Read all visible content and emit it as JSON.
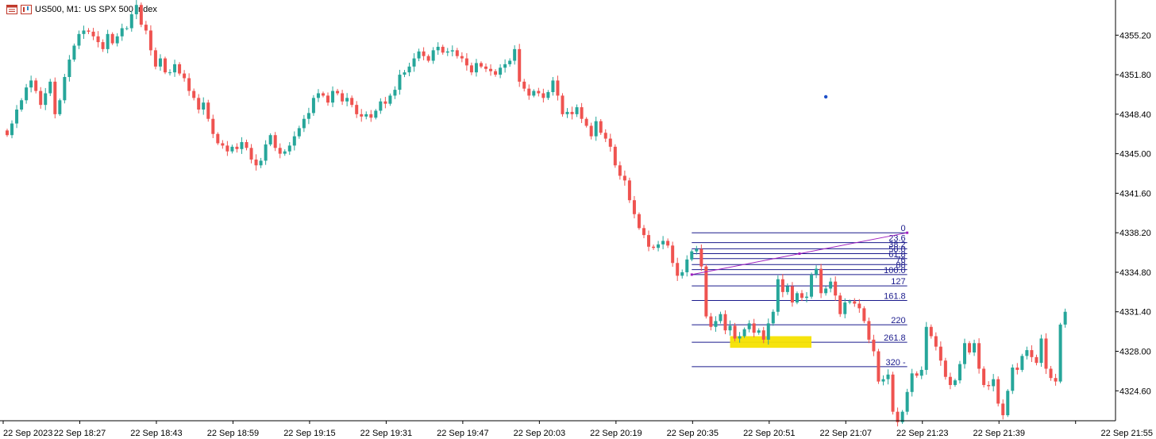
{
  "header": {
    "symbol": "US500, M1:",
    "description": "US SPX 500 Index"
  },
  "colors": {
    "bull": "#26a69a",
    "bear": "#ef5350",
    "fib_line": "#1a1a8c",
    "trend_line": "#a020c0",
    "highlight": "#f5e100",
    "axis": "#000000",
    "marker": "#1e50c8"
  },
  "icons": [
    "chart-window-icon",
    "chart-properties-icon"
  ],
  "chart_data": {
    "type": "candlestick",
    "symbol": "US500",
    "timeframe": "M1",
    "ylim": [
      4321.0,
      4359.0
    ],
    "y_ticks": [
      {
        "value": 4355.2,
        "label": "4355.20"
      },
      {
        "value": 4351.8,
        "label": "4351.80"
      },
      {
        "value": 4348.4,
        "label": "4348.40"
      },
      {
        "value": 4345.0,
        "label": "4345.00"
      },
      {
        "value": 4341.6,
        "label": "4341.60"
      },
      {
        "value": 4338.2,
        "label": "4338.20"
      },
      {
        "value": 4334.8,
        "label": "4334.80"
      },
      {
        "value": 4331.4,
        "label": "4331.40"
      },
      {
        "value": 4328.0,
        "label": "4328.00"
      },
      {
        "value": 4324.6,
        "label": "4324.60"
      }
    ],
    "x_ticks": [
      {
        "bar": 0,
        "label": "22 Sep 2023"
      },
      {
        "bar": 16,
        "label": "22 Sep 18:27"
      },
      {
        "bar": 32,
        "label": "22 Sep 18:43"
      },
      {
        "bar": 48,
        "label": "22 Sep 18:59"
      },
      {
        "bar": 64,
        "label": "22 Sep 19:15"
      },
      {
        "bar": 80,
        "label": "22 Sep 19:31"
      },
      {
        "bar": 96,
        "label": "22 Sep 19:47"
      },
      {
        "bar": 112,
        "label": "22 Sep 20:03"
      },
      {
        "bar": 128,
        "label": "22 Sep 20:19"
      },
      {
        "bar": 144,
        "label": "22 Sep 20:35"
      },
      {
        "bar": 160,
        "label": "22 Sep 20:51"
      },
      {
        "bar": 176,
        "label": "22 Sep 21:07"
      },
      {
        "bar": 192,
        "label": "22 Sep 21:23"
      },
      {
        "bar": 208,
        "label": "22 Sep 21:39"
      },
      {
        "bar": 224,
        "label": "22 Sep 21:55"
      }
    ],
    "closes": [
      4346.6,
      4347.6,
      4348.8,
      4349.6,
      4350.7,
      4351.3,
      4350.4,
      4349.2,
      4350.2,
      4351.2,
      4348.4,
      4349.6,
      4351.6,
      4353.1,
      4354.3,
      4355.3,
      4355.6,
      4355.5,
      4355.1,
      4354.6,
      4354.0,
      4355.3,
      4354.5,
      4355.1,
      4355.8,
      4355.8,
      4357.0,
      4357.8,
      4356.1,
      4355.6,
      4353.9,
      4352.5,
      4353.2,
      4352.0,
      4352.0,
      4352.7,
      4351.9,
      4351.5,
      4350.4,
      4349.8,
      4348.8,
      4349.4,
      4348.0,
      4346.7,
      4345.9,
      4345.7,
      4345.2,
      4345.6,
      4345.4,
      4346.0,
      4345.5,
      4344.5,
      4344.0,
      4344.4,
      4345.8,
      4346.6,
      4345.5,
      4345.0,
      4345.2,
      4345.7,
      4346.5,
      4347.2,
      4348.0,
      4348.5,
      4349.8,
      4350.2,
      4350.0,
      4349.4,
      4350.4,
      4350.2,
      4349.5,
      4349.8,
      4349.2,
      4348.4,
      4348.2,
      4348.4,
      4348.1,
      4348.7,
      4349.5,
      4349.3,
      4350.0,
      4350.5,
      4351.8,
      4352.0,
      4352.5,
      4353.2,
      4353.8,
      4353.4,
      4353.0,
      4353.9,
      4354.2,
      4353.7,
      4353.8,
      4353.9,
      4353.4,
      4353.2,
      4352.6,
      4352.0,
      4352.8,
      4352.5,
      4352.3,
      4352.1,
      4351.8,
      4352.4,
      4352.7,
      4353.0,
      4354.0,
      4351.2,
      4350.6,
      4350.0,
      4350.4,
      4350.2,
      4349.8,
      4350.3,
      4351.3,
      4350.0,
      4348.4,
      4348.6,
      4348.4,
      4349.0,
      4348.0,
      4347.4,
      4346.5,
      4347.8,
      4346.8,
      4346.3,
      4345.6,
      4344.0,
      4343.1,
      4342.7,
      4341.0,
      4339.8,
      4338.6,
      4338.0,
      4337.0,
      4336.9,
      4337.2,
      4337.5,
      4337.1,
      4335.6,
      4334.5,
      4334.8,
      4335.9,
      4336.6,
      4336.8,
      4335.3,
      4331.0,
      4330.1,
      4330.6,
      4331.2,
      4329.8,
      4330.2,
      4329.1,
      4329.3,
      4329.9,
      4330.4,
      4329.6,
      4329.8,
      4329.0,
      4330.4,
      4331.4,
      4334.2,
      4333.1,
      4333.6,
      4332.2,
      4333.0,
      4332.6,
      4332.7,
      4334.6,
      4335.1,
      4333.0,
      4333.4,
      4334.0,
      4332.8,
      4331.2,
      4332.2,
      4332.3,
      4332.1,
      4331.7,
      4330.6,
      4329.0,
      4328.0,
      4325.4,
      4325.6,
      4326.0,
      4322.8,
      4321.9,
      4322.8,
      4324.5,
      4326.1,
      4325.9,
      4326.4,
      4330.1,
      4329.3,
      4328.4,
      4327.2,
      4325.8,
      4325.1,
      4325.5,
      4326.9,
      4328.7,
      4327.9,
      4328.7,
      4326.5,
      4325.1,
      4325.0,
      4325.6,
      4323.5,
      4322.5,
      4324.6,
      4326.6,
      4326.4,
      4327.6,
      4328.1,
      4327.5,
      4327.0,
      4329.1,
      4326.5,
      4325.7,
      4325.4,
      4330.3,
      4331.4
    ],
    "fibonacci": {
      "start_bar": 143,
      "end_bar": 188,
      "price_0": 4338.2,
      "price_100": 4334.6,
      "levels": [
        {
          "ratio": 0.0,
          "label": "0"
        },
        {
          "ratio": 0.236,
          "label": "23.6"
        },
        {
          "ratio": 0.382,
          "label": "38.2"
        },
        {
          "ratio": 0.5,
          "label": "50.0"
        },
        {
          "ratio": 0.618,
          "label": "61.8"
        },
        {
          "ratio": 0.76,
          "label": "76"
        },
        {
          "ratio": 0.88,
          "label": "88"
        },
        {
          "ratio": 1.0,
          "label": "100.0"
        },
        {
          "ratio": 1.27,
          "label": "127"
        },
        {
          "ratio": 1.618,
          "label": "161.8"
        },
        {
          "ratio": 2.2,
          "label": "220"
        },
        {
          "ratio": 2.618,
          "label": "261.8"
        },
        {
          "ratio": 3.2,
          "label": "320 -"
        }
      ]
    },
    "trend_line": {
      "from_bar": 143,
      "from_price": 4334.6,
      "to_bar": 188,
      "to_price": 4338.2
    },
    "highlight_zone": {
      "from_bar": 151,
      "to_bar": 168,
      "low": 4328.3,
      "high": 4329.3
    },
    "marker": {
      "bar": 171,
      "price": 4349.9
    }
  }
}
